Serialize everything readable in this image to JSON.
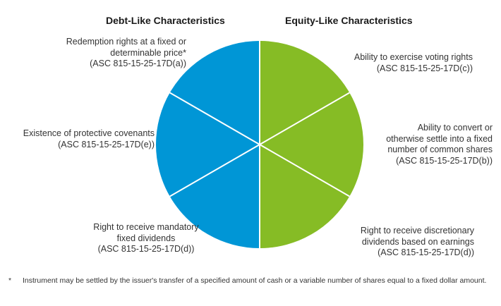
{
  "headers": {
    "left": "Debt-Like Characteristics",
    "right": "Equity-Like Characteristics"
  },
  "colors": {
    "debt": "#0096D6",
    "equity": "#86BC25",
    "divider": "#ffffff"
  },
  "debt_items": [
    {
      "lines": [
        "Redemption rights at a fixed or",
        "determinable price*",
        "(ASC 815-15-25-17D(a))"
      ]
    },
    {
      "lines": [
        "Existence of protective covenants",
        "(ASC 815-15-25-17D(e))"
      ]
    },
    {
      "lines": [
        "Right to receive mandatory",
        "fixed dividends",
        "(ASC 815-15-25-17D(d))"
      ]
    }
  ],
  "equity_items": [
    {
      "lines": [
        "Ability to exercise voting rights",
        "(ASC 815-15-25-17D(c))"
      ]
    },
    {
      "lines": [
        "Ability to convert or",
        "otherwise settle into a fixed",
        "number of common shares",
        "(ASC 815-15-25-17D(b))"
      ]
    },
    {
      "lines": [
        "Right to receive discretionary",
        "dividends based on earnings",
        "(ASC 815-15-25-17D(d))"
      ]
    }
  ],
  "footnote": {
    "mark": "*",
    "text": "Instrument may be settled by the issuer's transfer of a specified amount of cash or a variable number of shares equal to a fixed dollar amount."
  }
}
